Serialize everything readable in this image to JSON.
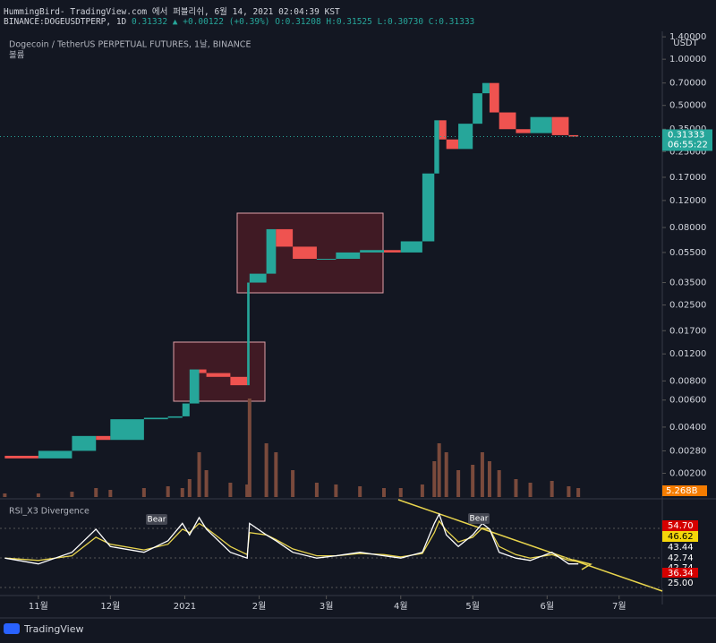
{
  "header": {
    "published": "HummingBird- TradingView.com 에서 퍼블리쉬, 6월 14, 2021 02:04:39 KST",
    "symbol": "BINANCE:DOGEUSDTPERP, 1D",
    "last": "0.31332",
    "change": "▲ +0.00122 (+0.39%)",
    "ohlc": "O:0.31208 H:0.31525 L:0.30730 C:0.31333"
  },
  "chart_data": {
    "type": "candlestick",
    "title": "Dogecoin / TetherUS PERPETUAL FUTURES, 1날, BINANCE",
    "volume_title": "볼륨",
    "unit": "USDT",
    "log_scale": true,
    "x": [
      17,
      31,
      45,
      55,
      61,
      75,
      85,
      91,
      94,
      98,
      101,
      111,
      118,
      119,
      126,
      130,
      137,
      147,
      155,
      165,
      175,
      182,
      191,
      196,
      198,
      201,
      206,
      212,
      216,
      219,
      223,
      230,
      236,
      245,
      252,
      256
    ],
    "xlim": [
      15,
      291
    ],
    "xticks": [
      {
        "value": 31,
        "label": "11월"
      },
      {
        "value": 61,
        "label": "12월"
      },
      {
        "value": 92,
        "label": "2021"
      },
      {
        "value": 123,
        "label": "2월"
      },
      {
        "value": 151,
        "label": "3월"
      },
      {
        "value": 182,
        "label": "4월"
      },
      {
        "value": 212,
        "label": "5월"
      },
      {
        "value": 243,
        "label": "6월"
      },
      {
        "value": 273,
        "label": "7월"
      }
    ],
    "ylim": [
      0.0014,
      1.52
    ],
    "yticks": [
      {
        "value": 1.4,
        "label": "1.40000"
      },
      {
        "value": 1,
        "label": "1.00000"
      },
      {
        "value": 0.7,
        "label": "0.70000"
      },
      {
        "value": 0.5,
        "label": "0.50000"
      },
      {
        "value": 0.35,
        "label": "0.35000"
      },
      {
        "value": 0.25,
        "label": "0.25000"
      },
      {
        "value": 0.17,
        "label": "0.17000"
      },
      {
        "value": 0.12,
        "label": "0.12000"
      },
      {
        "value": 0.08,
        "label": "0.08000"
      },
      {
        "value": 0.055,
        "label": "0.05500"
      },
      {
        "value": 0.035,
        "label": "0.03500"
      },
      {
        "value": 0.025,
        "label": "0.02500"
      },
      {
        "value": 0.017,
        "label": "0.01700"
      },
      {
        "value": 0.012,
        "label": "0.01200"
      },
      {
        "value": 0.008,
        "label": "0.00800"
      },
      {
        "value": 0.006,
        "label": "0.00600"
      },
      {
        "value": 0.004,
        "label": "0.00400"
      },
      {
        "value": 0.0028,
        "label": "0.00280"
      },
      {
        "value": 0.002,
        "label": "0.00200"
      }
    ],
    "series": [
      {
        "name": "DOGEUSDTPERP",
        "up_color": "#26a69a",
        "down_color": "#ef5350",
        "values": [
          0.0026,
          0.0025,
          0.0028,
          0.0035,
          0.0033,
          0.0045,
          0.0046,
          0.0047,
          0.0057,
          0.0095,
          0.009,
          0.0085,
          0.0075,
          0.035,
          0.04,
          0.078,
          0.06,
          0.05,
          0.05,
          0.055,
          0.057,
          0.055,
          0.065,
          0.18,
          0.4,
          0.3,
          0.26,
          0.38,
          0.6,
          0.7,
          0.45,
          0.35,
          0.33,
          0.42,
          0.32,
          0.31333
        ]
      }
    ],
    "price_tag": {
      "value": 0.31333,
      "label": "0.31333",
      "countdown": "06:55:22",
      "color": "#26a69a"
    },
    "volume": {
      "color": "#7a4a3c",
      "ylim": [
        0,
        26
      ],
      "values": [
        0.2,
        0.2,
        0.3,
        0.5,
        0.4,
        0.5,
        0.6,
        0.5,
        1,
        2.5,
        1.5,
        0.8,
        0.7,
        5.5,
        3,
        2.5,
        1.5,
        0.8,
        0.7,
        0.6,
        0.5,
        0.5,
        0.7,
        2,
        3,
        2.5,
        1.5,
        1.8,
        2.5,
        2,
        1.5,
        1,
        0.8,
        0.9,
        0.6,
        0.5
      ],
      "tag": {
        "value": 5.268,
        "label": "5.268B",
        "color": "#f57c00"
      }
    },
    "rsi": {
      "title": "RSI_X3 Divergence",
      "ylim": [
        20,
        95
      ],
      "series": [
        {
          "name": "RSI",
          "color": "#ffffff",
          "values": [
            50,
            45,
            55,
            75,
            60,
            55,
            65,
            80,
            70,
            85,
            75,
            55,
            50,
            80,
            70,
            65,
            55,
            50,
            52,
            55,
            52,
            50,
            55,
            80,
            88,
            70,
            60,
            70,
            80,
            75,
            55,
            50,
            48,
            55,
            45,
            45
          ]
        },
        {
          "name": "Signal",
          "color": "#e8d44d",
          "values": [
            50,
            48,
            52,
            68,
            62,
            57,
            62,
            75,
            72,
            80,
            76,
            60,
            53,
            72,
            70,
            66,
            58,
            52,
            52,
            54,
            53,
            51,
            54,
            72,
            82,
            74,
            64,
            68,
            76,
            75,
            60,
            53,
            50,
            53,
            48,
            47
          ]
        }
      ],
      "axis_labels": [
        {
          "value": 54.7,
          "label": "54.70",
          "bg": "#d50000"
        },
        {
          "value": 46.62,
          "label": "46.62",
          "bg": "#f5d60a"
        },
        {
          "value": 43.44,
          "label": "43.44",
          "bg": "#131722"
        },
        {
          "value": 42.74,
          "label": "42.74",
          "bg": "#131722"
        },
        {
          "value": 42.74,
          "label": "42.74",
          "bg": "#131722"
        },
        {
          "value": 36.34,
          "label": "36.34",
          "bg": "#d50000"
        },
        {
          "value": 25,
          "label": "25.00",
          "bg": "#131722"
        }
      ],
      "annotations": [
        "Bear",
        "Bear"
      ]
    }
  },
  "footer": {
    "brand": "TradingView"
  }
}
